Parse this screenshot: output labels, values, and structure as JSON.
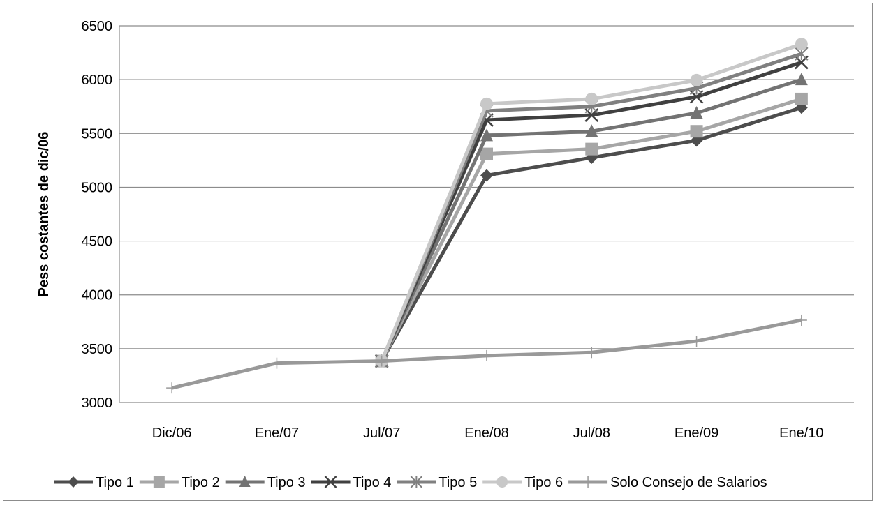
{
  "chart_data": {
    "type": "line",
    "title": "",
    "xlabel": "",
    "ylabel": "Pess costantes de dic/06",
    "ylim": [
      3000,
      6500
    ],
    "yticks": [
      3000,
      3500,
      4000,
      4500,
      5000,
      5500,
      6000,
      6500
    ],
    "categories": [
      "Dic/06",
      "Ene/07",
      "Jul/07",
      "Ene/08",
      "Jul/08",
      "Ene/09",
      "Ene/10"
    ],
    "grid": true,
    "legend": "bottom",
    "series": [
      {
        "name": "Tipo 1",
        "color": "#4d4d4d",
        "marker": "diamond",
        "values": [
          null,
          null,
          3385,
          5110,
          5275,
          5435,
          5740
        ]
      },
      {
        "name": "Tipo 2",
        "color": "#a6a6a6",
        "marker": "square",
        "values": [
          null,
          null,
          3385,
          5310,
          5355,
          5520,
          5820
        ]
      },
      {
        "name": "Tipo 3",
        "color": "#737373",
        "marker": "triangle",
        "values": [
          null,
          null,
          3385,
          5480,
          5520,
          5690,
          6000
        ]
      },
      {
        "name": "Tipo 4",
        "color": "#404040",
        "marker": "x",
        "values": [
          null,
          null,
          3385,
          5625,
          5670,
          5840,
          6160
        ]
      },
      {
        "name": "Tipo 5",
        "color": "#808080",
        "marker": "star",
        "values": [
          null,
          null,
          3385,
          5710,
          5750,
          5920,
          6240
        ]
      },
      {
        "name": "Tipo 6",
        "color": "#c8c8c8",
        "marker": "circle",
        "values": [
          null,
          null,
          3385,
          5775,
          5820,
          5995,
          6330
        ]
      },
      {
        "name": "Solo Consejo de Salarios",
        "color": "#999999",
        "marker": "plus",
        "values": [
          3135,
          3365,
          3385,
          3435,
          3465,
          3570,
          3765
        ]
      }
    ]
  }
}
